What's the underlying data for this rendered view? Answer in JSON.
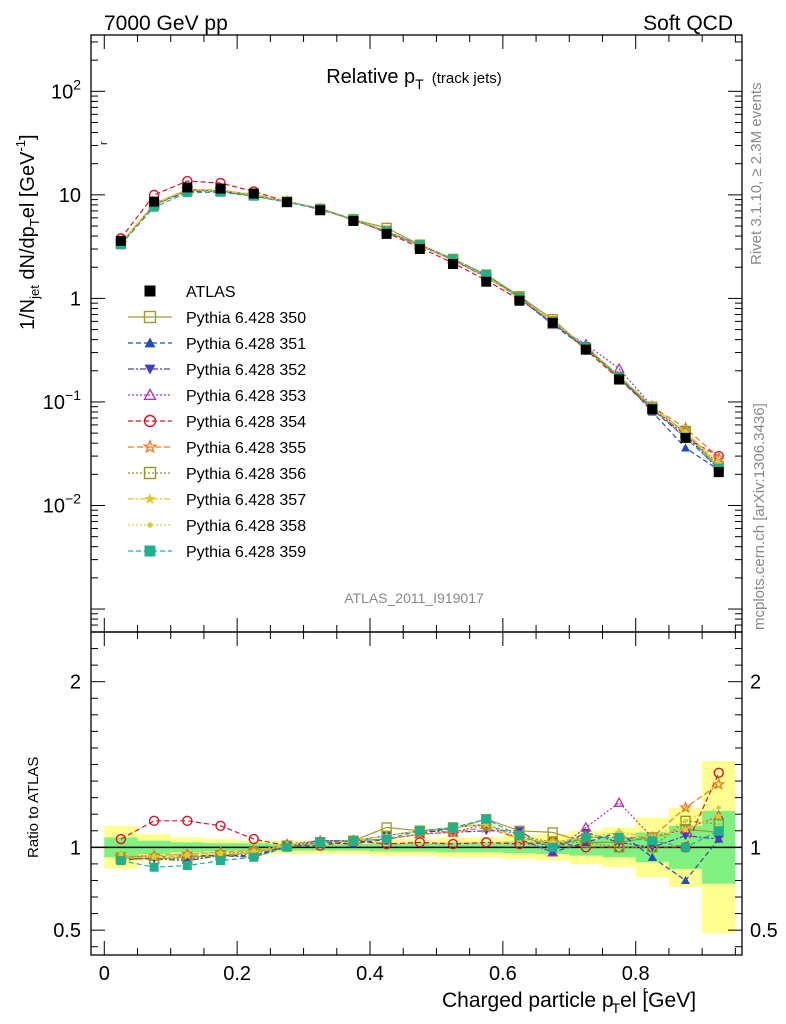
{
  "header": {
    "left": "7000 GeV pp",
    "right": "Soft QCD"
  },
  "side": {
    "rivet": "Rivet 3.1.10, ≥ 2.3M events",
    "mcplots": "mcplots.cern.ch [arXiv:1306.3436]"
  },
  "analysis_id": "ATLAS_2011_I919017",
  "colors": {
    "ATLAS": "#000000",
    "350": "#a49a35",
    "351": "#1f4eb4",
    "352": "#4040c0",
    "353": "#b030b0",
    "354": "#e0102a",
    "355": "#f07820",
    "356": "#8c9a1a",
    "357": "#e8c820",
    "358": "#d0d040",
    "359": "#20b090",
    "band_inner": "#80f080",
    "band_outer": "#ffff90"
  },
  "chart_data": [
    {
      "type": "line",
      "title": "Relative p",
      "title_sub": "T",
      "title_note": "(track jets)",
      "ylabel_parts": [
        "1/N",
        "jet",
        " dN/dp",
        "T",
        "el [GeV",
        "-1",
        "]"
      ],
      "ylabel_rel": "r",
      "yscale": "log",
      "xlim": [
        -0.02,
        0.96
      ],
      "ylim": [
        0.0006,
        350
      ],
      "y_ticks": [
        {
          "value": 0.01,
          "base": "10",
          "exp": "−2"
        },
        {
          "value": 0.1,
          "base": "10",
          "exp": "−1"
        },
        {
          "value": 1,
          "base": "1",
          "exp": ""
        },
        {
          "value": 10,
          "base": "10",
          "exp": ""
        },
        {
          "value": 100,
          "base": "10",
          "exp": "2"
        }
      ],
      "x": [
        0.025,
        0.075,
        0.125,
        0.175,
        0.225,
        0.275,
        0.325,
        0.375,
        0.425,
        0.475,
        0.525,
        0.575,
        0.625,
        0.675,
        0.725,
        0.775,
        0.825,
        0.875,
        0.925
      ],
      "series": [
        {
          "name": "ATLAS",
          "key": "ATLAS",
          "values": [
            3.6,
            8.6,
            11.8,
            11.5,
            10.3,
            8.5,
            7.1,
            5.6,
            4.2,
            3.0,
            2.15,
            1.45,
            0.95,
            0.58,
            0.32,
            0.165,
            0.085,
            0.045,
            0.021
          ]
        },
        {
          "name": "Pythia 6.428 350",
          "key": "350",
          "values": [
            3.4,
            8.0,
            11.1,
            10.9,
            10.0,
            8.6,
            7.3,
            5.8,
            4.8,
            3.3,
            2.4,
            1.7,
            1.05,
            0.63,
            0.33,
            0.17,
            0.09,
            0.05,
            0.023
          ]
        },
        {
          "name": "Pythia 6.428 351",
          "key": "351",
          "values": [
            3.3,
            8.1,
            11.2,
            10.9,
            9.8,
            8.6,
            7.3,
            5.7,
            4.4,
            3.25,
            2.4,
            1.65,
            1.0,
            0.56,
            0.33,
            0.18,
            0.08,
            0.036,
            0.022
          ]
        },
        {
          "name": "Pythia 6.428 352",
          "key": "352",
          "values": [
            3.35,
            8.0,
            10.8,
            10.9,
            9.7,
            8.6,
            7.4,
            5.8,
            4.5,
            3.3,
            2.35,
            1.6,
            1.05,
            0.57,
            0.35,
            0.17,
            0.085,
            0.048,
            0.022
          ]
        },
        {
          "name": "Pythia 6.428 353",
          "key": "353",
          "values": [
            3.4,
            8.2,
            11.3,
            11.1,
            10.0,
            8.7,
            7.4,
            5.8,
            4.4,
            3.25,
            2.35,
            1.65,
            1.0,
            0.56,
            0.36,
            0.21,
            0.09,
            0.05,
            0.025
          ]
        },
        {
          "name": "Pythia 6.428 354",
          "key": "354",
          "values": [
            3.8,
            10.0,
            13.6,
            13.0,
            10.8,
            8.6,
            7.2,
            5.8,
            4.3,
            3.1,
            2.2,
            1.5,
            0.97,
            0.6,
            0.32,
            0.165,
            0.085,
            0.045,
            0.03
          ]
        },
        {
          "name": "Pythia 6.428 355",
          "key": "355",
          "values": [
            3.4,
            8.2,
            11.3,
            11.1,
            10.1,
            8.6,
            7.3,
            5.8,
            4.4,
            3.25,
            2.35,
            1.62,
            1.0,
            0.6,
            0.34,
            0.175,
            0.09,
            0.056,
            0.029
          ]
        },
        {
          "name": "Pythia 6.428 356",
          "key": "356",
          "values": [
            3.35,
            8.0,
            11.0,
            10.9,
            9.9,
            8.6,
            7.3,
            5.8,
            4.5,
            3.3,
            2.4,
            1.65,
            1.02,
            0.6,
            0.33,
            0.165,
            0.085,
            0.052,
            0.024
          ]
        },
        {
          "name": "Pythia 6.428 357",
          "key": "357",
          "values": [
            3.4,
            8.1,
            11.2,
            11.0,
            10.0,
            8.6,
            7.3,
            5.8,
            4.5,
            3.3,
            2.4,
            1.65,
            1.0,
            0.6,
            0.34,
            0.18,
            0.09,
            0.05,
            0.025
          ]
        },
        {
          "name": "Pythia 6.428 358",
          "key": "358",
          "values": [
            3.45,
            8.2,
            11.3,
            11.1,
            10.1,
            8.7,
            7.3,
            5.8,
            4.5,
            3.3,
            2.4,
            1.65,
            1.0,
            0.6,
            0.34,
            0.18,
            0.09,
            0.052,
            0.026
          ]
        },
        {
          "name": "Pythia 6.428 359",
          "key": "359",
          "values": [
            3.3,
            7.6,
            10.5,
            10.6,
            9.7,
            8.5,
            7.3,
            5.8,
            4.4,
            3.3,
            2.4,
            1.7,
            1.02,
            0.58,
            0.34,
            0.175,
            0.088,
            0.045,
            0.023
          ]
        }
      ]
    },
    {
      "type": "line",
      "ylabel": "Ratio to ATLAS",
      "xlabel": "Charged particle p",
      "xlabel_sub": "T",
      "xlabel_rel": "r",
      "xlabel_tail": "el [GeV]",
      "ylim": [
        0.35,
        2.3
      ],
      "y_ticks": [
        "0.5",
        "1",
        "2"
      ],
      "x_ticks": [
        "0",
        "0.2",
        "0.4",
        "0.6",
        "0.8"
      ],
      "band_inner": [
        0.06,
        0.04,
        0.03,
        0.025,
        0.025,
        0.02,
        0.02,
        0.02,
        0.025,
        0.025,
        0.03,
        0.03,
        0.035,
        0.04,
        0.05,
        0.06,
        0.09,
        0.13,
        0.22
      ],
      "band_outer": [
        0.13,
        0.08,
        0.06,
        0.05,
        0.04,
        0.04,
        0.04,
        0.04,
        0.05,
        0.05,
        0.06,
        0.06,
        0.07,
        0.08,
        0.1,
        0.12,
        0.18,
        0.24,
        0.52
      ],
      "series": [
        {
          "key": "350",
          "values": [
            0.94,
            0.93,
            0.94,
            0.95,
            0.97,
            1.01,
            1.03,
            1.04,
            1.12,
            1.1,
            1.11,
            1.17,
            1.1,
            1.09,
            1.03,
            1.03,
            1.06,
            1.11,
            1.09
          ]
        },
        {
          "key": "351",
          "values": [
            0.92,
            0.94,
            0.95,
            0.95,
            0.95,
            1.01,
            1.03,
            1.02,
            1.05,
            1.08,
            1.12,
            1.14,
            1.05,
            0.97,
            1.03,
            1.09,
            0.94,
            0.8,
            1.05
          ]
        },
        {
          "key": "352",
          "values": [
            0.93,
            0.93,
            0.92,
            0.95,
            0.94,
            1.01,
            1.04,
            1.04,
            1.07,
            1.1,
            1.09,
            1.1,
            1.1,
            0.98,
            1.09,
            1.03,
            1.0,
            1.07,
            1.05
          ]
        },
        {
          "key": "353",
          "values": [
            0.94,
            0.95,
            0.96,
            0.97,
            0.97,
            1.02,
            1.04,
            1.04,
            1.05,
            1.08,
            1.09,
            1.14,
            1.05,
            0.97,
            1.12,
            1.27,
            1.06,
            1.11,
            1.19
          ]
        },
        {
          "key": "354",
          "values": [
            1.05,
            1.16,
            1.16,
            1.13,
            1.05,
            1.01,
            1.01,
            1.04,
            1.02,
            1.03,
            1.02,
            1.03,
            1.02,
            1.03,
            1.0,
            1.0,
            1.0,
            1.0,
            1.45
          ]
        },
        {
          "key": "355",
          "values": [
            0.94,
            0.95,
            0.96,
            0.97,
            0.98,
            1.01,
            1.03,
            1.04,
            1.05,
            1.08,
            1.09,
            1.12,
            1.05,
            1.03,
            1.06,
            1.06,
            1.06,
            1.24,
            1.38
          ]
        },
        {
          "key": "356",
          "values": [
            0.93,
            0.93,
            0.93,
            0.95,
            0.96,
            1.01,
            1.03,
            1.04,
            1.07,
            1.1,
            1.12,
            1.14,
            1.07,
            1.03,
            1.03,
            1.0,
            1.0,
            1.16,
            1.14
          ]
        },
        {
          "key": "357",
          "values": [
            0.94,
            0.94,
            0.95,
            0.96,
            0.97,
            1.01,
            1.03,
            1.04,
            1.07,
            1.1,
            1.12,
            1.14,
            1.05,
            1.03,
            1.06,
            1.09,
            1.06,
            1.11,
            1.19
          ]
        },
        {
          "key": "358",
          "values": [
            0.96,
            0.95,
            0.96,
            0.97,
            0.98,
            1.02,
            1.03,
            1.04,
            1.07,
            1.1,
            1.12,
            1.14,
            1.05,
            1.03,
            1.06,
            1.09,
            1.06,
            1.16,
            1.24
          ]
        },
        {
          "key": "359",
          "values": [
            0.92,
            0.88,
            0.89,
            0.92,
            0.94,
            1.0,
            1.03,
            1.04,
            1.05,
            1.1,
            1.12,
            1.17,
            1.07,
            1.0,
            1.06,
            1.06,
            1.04,
            1.0,
            1.1
          ]
        }
      ]
    }
  ]
}
